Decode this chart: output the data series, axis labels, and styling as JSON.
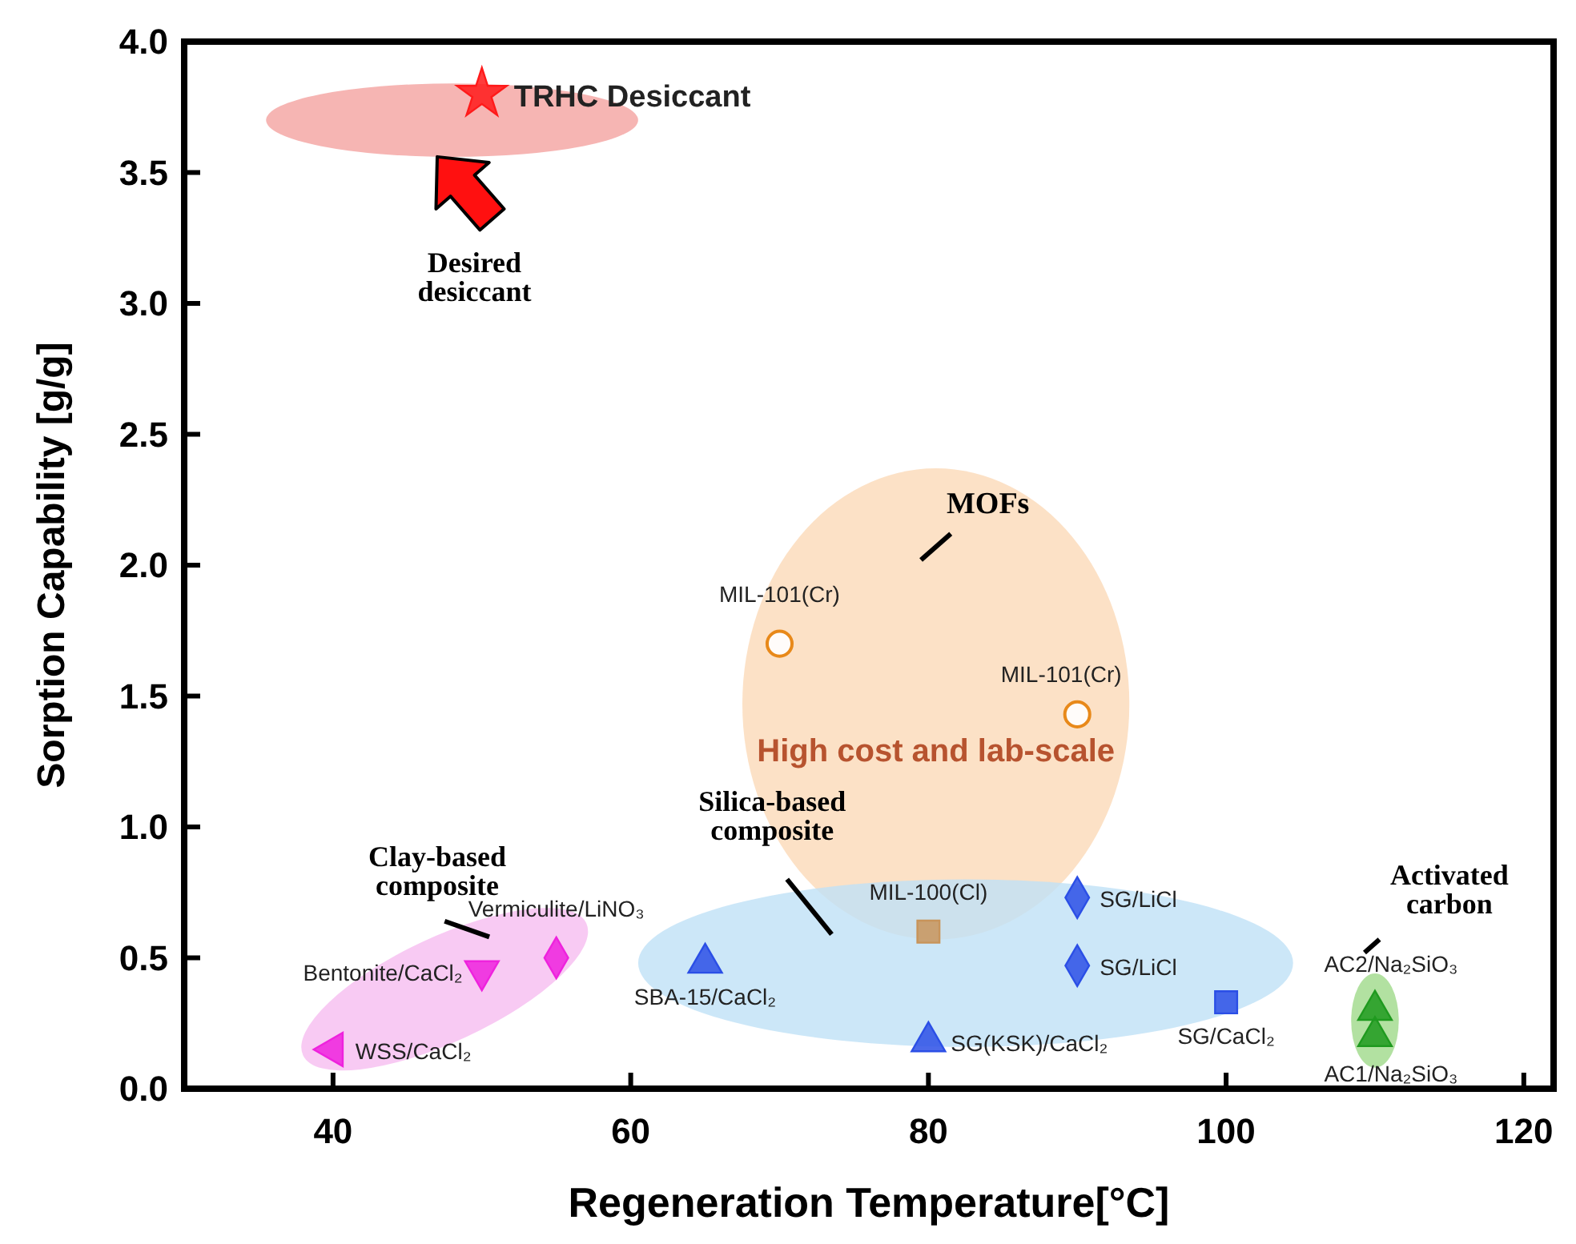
{
  "chart_data": {
    "type": "scatter",
    "xlabel": "Regeneration Temperature[°C]",
    "ylabel": "Sorption Capability [g/g]",
    "xlim": [
      30,
      122
    ],
    "xticks": [
      40,
      60,
      80,
      100,
      120
    ],
    "ylim": [
      0,
      4
    ],
    "yticks": [
      {
        "value": 0,
        "label": "0.0"
      },
      {
        "value": 0.5,
        "label": "0.5"
      },
      {
        "value": 1,
        "label": "1.0"
      },
      {
        "value": 1.5,
        "label": "1.5"
      },
      {
        "value": 2,
        "label": "2.0"
      },
      {
        "value": 2.5,
        "label": "2.5"
      },
      {
        "value": 3,
        "label": "3.0"
      },
      {
        "value": 3.5,
        "label": "3.5"
      },
      {
        "value": 4,
        "label": "4.0"
      }
    ],
    "grid": false,
    "series": [
      {
        "name": "TRHC Desiccant",
        "color": "#ff1a1a",
        "marker": "star",
        "x": [
          50
        ],
        "values": [
          3.8
        ]
      },
      {
        "name": "MIL-101(Cr)",
        "color": "#e8891a",
        "marker": "circle",
        "x": [
          70
        ],
        "values": [
          1.7
        ]
      },
      {
        "name": "MIL-101(Cr)",
        "color": "#e8891a",
        "marker": "circle",
        "x": [
          90
        ],
        "values": [
          1.43
        ]
      },
      {
        "name": "MIL-100(Cl)",
        "color": "#c8945a",
        "marker": "square",
        "x": [
          80
        ],
        "values": [
          0.6
        ]
      },
      {
        "name": "SG/LiCl",
        "color": "#2b4fe6",
        "marker": "diamond",
        "x": [
          90
        ],
        "values": [
          0.73
        ]
      },
      {
        "name": "SG/LiCl",
        "color": "#2b4fe6",
        "marker": "diamond",
        "x": [
          90
        ],
        "values": [
          0.47
        ]
      },
      {
        "name": "SBA-15/CaCl₂",
        "color": "#2b4fe6",
        "marker": "triangle",
        "x": [
          65
        ],
        "values": [
          0.48
        ]
      },
      {
        "name": "SG(KSK)/CaCl₂",
        "color": "#2b4fe6",
        "marker": "triangle",
        "x": [
          80
        ],
        "values": [
          0.18
        ]
      },
      {
        "name": "SG/CaCl₂",
        "color": "#2b4fe6",
        "marker": "square",
        "x": [
          100
        ],
        "values": [
          0.33
        ]
      },
      {
        "name": "AC2/Na₂SiO₃",
        "color": "#1f9a1f",
        "marker": "triangle",
        "x": [
          110
        ],
        "values": [
          0.3
        ]
      },
      {
        "name": "AC1/Na₂SiO₃",
        "color": "#1f9a1f",
        "marker": "triangle",
        "x": [
          110
        ],
        "values": [
          0.2
        ]
      },
      {
        "name": "Bentonite/CaCl₂",
        "color": "#ee22dd",
        "marker": "triangle-down",
        "x": [
          50
        ],
        "values": [
          0.45
        ]
      },
      {
        "name": "Vermiculite/LiNO₃",
        "color": "#ee22dd",
        "marker": "diamond",
        "x": [
          55
        ],
        "values": [
          0.5
        ]
      },
      {
        "name": "WSS/CaCl₂",
        "color": "#ee22dd",
        "marker": "triangle-left",
        "x": [
          40
        ],
        "values": [
          0.15
        ]
      }
    ],
    "annotations": [
      "Desired desiccant",
      "MOFs",
      "High cost and lab-scale",
      "Silica-based composite",
      "Clay-based composite",
      "Activated carbon"
    ]
  }
}
